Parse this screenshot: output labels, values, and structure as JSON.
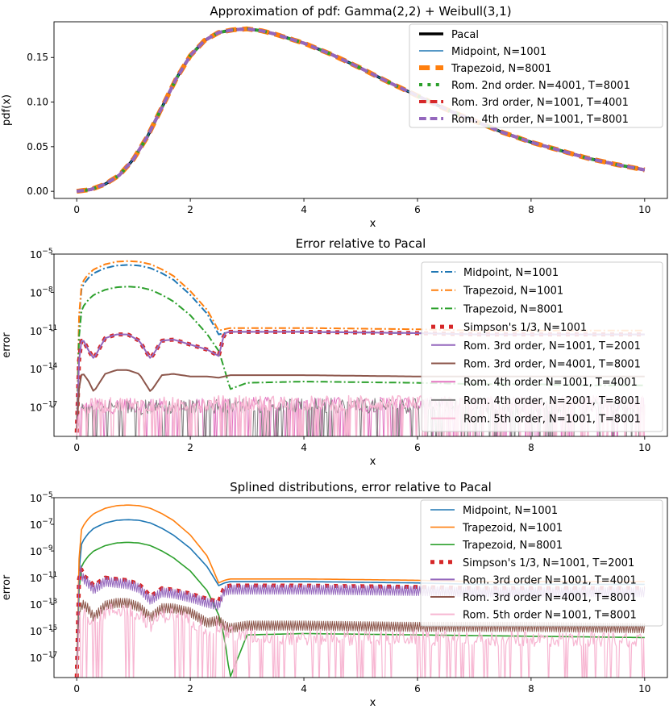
{
  "chart_data": [
    {
      "type": "line",
      "title": "Approximation of pdf: Gamma(2,2) + Weibull(3,1)",
      "xlabel": "x",
      "ylabel": "pdf(x)",
      "xlim": [
        -0.4,
        10.4
      ],
      "ylim": [
        -0.008,
        0.19
      ],
      "yscale": "linear",
      "xticks": [
        0,
        2,
        4,
        6,
        8,
        10
      ],
      "xtick_labels": [
        "0",
        "2",
        "4",
        "6",
        "8",
        "10"
      ],
      "yticks": [
        0.0,
        0.05,
        0.1,
        0.15
      ],
      "ytick_labels": [
        "0.00",
        "0.05",
        "0.10",
        "0.15"
      ],
      "legend_position": "upper-right",
      "x": [
        0,
        0.25,
        0.5,
        0.75,
        1.0,
        1.25,
        1.5,
        1.75,
        2.0,
        2.25,
        2.5,
        2.75,
        3.0,
        3.25,
        3.5,
        4.0,
        4.5,
        5.0,
        5.5,
        6.0,
        6.5,
        7.0,
        7.5,
        8.0,
        8.5,
        9.0,
        9.5,
        10.0
      ],
      "series": [
        {
          "name": "Pacal",
          "color": "#000000",
          "style": "solid",
          "width": 3.5,
          "y": [
            0,
            0.002,
            0.008,
            0.018,
            0.036,
            0.062,
            0.094,
            0.126,
            0.152,
            0.169,
            0.178,
            0.181,
            0.182,
            0.18,
            0.176,
            0.166,
            0.153,
            0.138,
            0.122,
            0.107,
            0.092,
            0.079,
            0.066,
            0.055,
            0.046,
            0.037,
            0.03,
            0.024
          ]
        },
        {
          "name": "Midpoint, N=1001",
          "color": "#1f77b4",
          "style": "solid",
          "width": 1.6,
          "y": [
            0,
            0.002,
            0.008,
            0.018,
            0.036,
            0.062,
            0.094,
            0.126,
            0.152,
            0.169,
            0.178,
            0.181,
            0.182,
            0.18,
            0.176,
            0.166,
            0.153,
            0.138,
            0.122,
            0.107,
            0.092,
            0.079,
            0.066,
            0.055,
            0.046,
            0.037,
            0.03,
            0.024
          ]
        },
        {
          "name": "Trapezoid, N=8001",
          "color": "#ff7f0e",
          "style": "dashed",
          "width": 6,
          "y": [
            0,
            0.002,
            0.008,
            0.018,
            0.036,
            0.062,
            0.094,
            0.126,
            0.152,
            0.169,
            0.178,
            0.181,
            0.182,
            0.18,
            0.176,
            0.166,
            0.153,
            0.138,
            0.122,
            0.107,
            0.092,
            0.079,
            0.066,
            0.055,
            0.046,
            0.037,
            0.03,
            0.024
          ]
        },
        {
          "name": "Rom. 2nd order. N=4001, T=8001",
          "color": "#2ca02c",
          "style": "dotted",
          "width": 4,
          "y": [
            0,
            0.002,
            0.008,
            0.018,
            0.036,
            0.062,
            0.094,
            0.126,
            0.152,
            0.169,
            0.178,
            0.181,
            0.182,
            0.18,
            0.176,
            0.166,
            0.153,
            0.138,
            0.122,
            0.107,
            0.092,
            0.079,
            0.066,
            0.055,
            0.046,
            0.037,
            0.03,
            0.024
          ]
        },
        {
          "name": "Rom. 3rd order, N=1001, T=4001",
          "color": "#d62728",
          "style": "dashed",
          "width": 4,
          "y": [
            0,
            0.002,
            0.008,
            0.018,
            0.036,
            0.062,
            0.094,
            0.126,
            0.152,
            0.169,
            0.178,
            0.181,
            0.182,
            0.18,
            0.176,
            0.166,
            0.153,
            0.138,
            0.122,
            0.107,
            0.092,
            0.079,
            0.066,
            0.055,
            0.046,
            0.037,
            0.03,
            0.024
          ]
        },
        {
          "name": "Rom. 4th order, N=1001, T=8001",
          "color": "#9467bd",
          "style": "dashed",
          "width": 4,
          "y": [
            0,
            0.002,
            0.008,
            0.018,
            0.036,
            0.062,
            0.094,
            0.126,
            0.152,
            0.169,
            0.178,
            0.181,
            0.182,
            0.18,
            0.176,
            0.166,
            0.153,
            0.138,
            0.122,
            0.107,
            0.092,
            0.079,
            0.066,
            0.055,
            0.046,
            0.037,
            0.03,
            0.024
          ]
        }
      ]
    },
    {
      "type": "line",
      "title": "Error relative to Pacal",
      "xlabel": "x",
      "ylabel": "error",
      "xlim": [
        -0.4,
        10.4
      ],
      "ylim": [
        -19.3,
        -5
      ],
      "yscale": "log10",
      "xticks": [
        0,
        2,
        4,
        6,
        8,
        10
      ],
      "xtick_labels": [
        "0",
        "2",
        "4",
        "6",
        "8",
        "10"
      ],
      "yticks": [
        -17,
        -14,
        -11,
        -8,
        -5
      ],
      "ytick_exponents": [
        "−17",
        "−14",
        "−11",
        "−8",
        "−5"
      ],
      "ytick_base": "10",
      "legend_position": "upper-right",
      "x": [
        0,
        0.05,
        0.1,
        0.2,
        0.3,
        0.5,
        0.7,
        0.9,
        1.1,
        1.3,
        1.5,
        1.7,
        2.0,
        2.3,
        2.5,
        2.6,
        2.7,
        3.0,
        4.0,
        5.0,
        6.0,
        7.0,
        8.0,
        9.0,
        10.0
      ],
      "series": [
        {
          "name": "Midpoint, N=1001",
          "color": "#1f77b4",
          "style": "dashdot",
          "width": 2,
          "y": [
            -19,
            -8.3,
            -7.5,
            -6.9,
            -6.5,
            -6.1,
            -5.9,
            -5.85,
            -5.9,
            -6.1,
            -6.5,
            -7.0,
            -8.2,
            -9.7,
            -11.3,
            -11.2,
            -11.1,
            -11.1,
            -11.1,
            -11.15,
            -11.2,
            -11.3,
            -11.3,
            -11.3,
            -11.3
          ]
        },
        {
          "name": "Trapezoid, N=1001",
          "color": "#ff7f0e",
          "style": "dashdot",
          "width": 2,
          "y": [
            -19,
            -8.0,
            -7.2,
            -6.6,
            -6.2,
            -5.8,
            -5.6,
            -5.55,
            -5.6,
            -5.8,
            -6.2,
            -6.7,
            -7.9,
            -9.4,
            -11.0,
            -10.9,
            -10.8,
            -10.8,
            -10.8,
            -10.85,
            -10.9,
            -11.0,
            -11.0,
            -11.0,
            -11.0
          ]
        },
        {
          "name": "Trapezoid, N=8001",
          "color": "#2ca02c",
          "style": "dashdot",
          "width": 2,
          "y": [
            -19,
            -10.0,
            -9.2,
            -8.6,
            -8.2,
            -7.8,
            -7.6,
            -7.55,
            -7.6,
            -7.8,
            -8.2,
            -8.7,
            -9.8,
            -11.3,
            -12.6,
            -14.0,
            -15.6,
            -15.1,
            -15.0,
            -15.05,
            -15.1,
            -15.2,
            -15.2,
            -15.3,
            -15.3
          ]
        },
        {
          "name": "Simpson's 1/3, N=1001",
          "color": "#d62728",
          "style": "squares",
          "width": 5,
          "y": [
            -19,
            -12.2,
            -11.6,
            -12.5,
            -13.2,
            -11.6,
            -11.3,
            -11.3,
            -11.8,
            -13.2,
            -11.8,
            -11.7,
            -12.1,
            -12.5,
            -13.0,
            -11.2,
            -11.1,
            -11.1,
            -11.1,
            -11.15,
            -11.2,
            -11.3,
            -11.3,
            -11.3,
            -11.3
          ]
        },
        {
          "name": "Rom. 3rd order, N=1001, T=2001",
          "color": "#9467bd",
          "style": "solid",
          "width": 2,
          "y": [
            -19,
            -12.2,
            -11.6,
            -12.5,
            -13.2,
            -11.6,
            -11.3,
            -11.3,
            -11.8,
            -13.2,
            -11.8,
            -11.7,
            -12.1,
            -12.5,
            -13.0,
            -11.2,
            -11.1,
            -11.1,
            -11.1,
            -11.15,
            -11.2,
            -11.3,
            -11.3,
            -11.3,
            -11.3
          ]
        },
        {
          "name": "Rom. 3rd order, N=4001, T=8001",
          "color": "#8c564b",
          "style": "solid",
          "width": 2,
          "y": [
            -19,
            -14.8,
            -14.3,
            -14.9,
            -15.8,
            -14.4,
            -14.1,
            -14.1,
            -14.4,
            -15.8,
            -14.5,
            -14.4,
            -14.6,
            -14.6,
            -14.7,
            -14.6,
            -14.5,
            -14.5,
            -14.5,
            -14.55,
            -14.6,
            -14.6,
            -14.6,
            -14.6,
            -14.6
          ]
        },
        {
          "name": "Rom. 4th order N=1001, T=4001",
          "color": "#e377c2",
          "style": "noise",
          "width": 1,
          "y": [
            -19,
            -17.4,
            -17.2,
            -17.1,
            -17.0,
            -17.0,
            -16.9,
            -16.9,
            -16.9,
            -16.9,
            -16.9,
            -16.9,
            -16.9,
            -16.9,
            -16.8,
            -16.8,
            -16.8,
            -16.8,
            -16.8,
            -16.8,
            -16.8,
            -16.8,
            -16.8,
            -16.8,
            -16.8
          ]
        },
        {
          "name": "Rom. 4th order, N=2001, T=8001",
          "color": "#7f7f7f",
          "style": "noise",
          "width": 1,
          "y": [
            -19,
            -17.5,
            -17.3,
            -17.2,
            -17.1,
            -17.1,
            -17.0,
            -17.0,
            -17.0,
            -17.0,
            -17.0,
            -17.0,
            -17.0,
            -17.0,
            -16.9,
            -16.9,
            -16.9,
            -16.9,
            -16.9,
            -16.9,
            -16.9,
            -16.9,
            -16.9,
            -16.9,
            -16.9
          ]
        },
        {
          "name": "Rom. 5th order, N=1001, T=8001",
          "color": "#f7b6d2",
          "style": "noise",
          "width": 1.5,
          "y": [
            -19,
            -17.3,
            -17.1,
            -17.0,
            -16.9,
            -16.9,
            -16.8,
            -16.8,
            -16.8,
            -16.8,
            -16.8,
            -16.8,
            -16.8,
            -16.8,
            -16.7,
            -16.7,
            -16.7,
            -16.7,
            -16.7,
            -16.7,
            -16.7,
            -16.7,
            -16.7,
            -16.7,
            -16.7
          ]
        }
      ]
    },
    {
      "type": "line",
      "title": "Splined distributions, error relative to Pacal",
      "xlabel": "x",
      "ylabel": "error",
      "xlim": [
        -0.4,
        10.4
      ],
      "ylim": [
        -18.5,
        -5
      ],
      "yscale": "log10",
      "xticks": [
        0,
        2,
        4,
        6,
        8,
        10
      ],
      "xtick_labels": [
        "0",
        "2",
        "4",
        "6",
        "8",
        "10"
      ],
      "yticks": [
        -17,
        -15,
        -13,
        -11,
        -9,
        -7,
        -5
      ],
      "ytick_exponents": [
        "−17",
        "−15",
        "−13",
        "−11",
        "−9",
        "−7",
        "−5"
      ],
      "ytick_base": "10",
      "legend_position": "upper-right",
      "x": [
        0,
        0.05,
        0.1,
        0.2,
        0.3,
        0.5,
        0.7,
        0.9,
        1.1,
        1.3,
        1.5,
        1.7,
        2.0,
        2.3,
        2.5,
        2.6,
        2.7,
        3.0,
        4.0,
        5.0,
        6.0,
        7.0,
        8.0,
        9.0,
        10.0
      ],
      "series": [
        {
          "name": "Midpoint, N=1001",
          "color": "#1f77b4",
          "style": "solid",
          "width": 1.6,
          "y": [
            -18.5,
            -8.9,
            -8.3,
            -7.7,
            -7.3,
            -6.9,
            -6.7,
            -6.65,
            -6.7,
            -6.9,
            -7.3,
            -7.8,
            -8.8,
            -10.2,
            -11.6,
            -11.4,
            -11.3,
            -11.3,
            -11.3,
            -11.35,
            -11.4,
            -11.5,
            -11.5,
            -11.5,
            -11.5
          ]
        },
        {
          "name": "Trapezoid, N=1001",
          "color": "#ff7f0e",
          "style": "solid",
          "width": 1.6,
          "y": [
            -18.5,
            -7.8,
            -7.2,
            -6.6,
            -6.2,
            -5.8,
            -5.6,
            -5.55,
            -5.6,
            -5.8,
            -6.2,
            -6.7,
            -7.8,
            -9.4,
            -11.4,
            -11.2,
            -11.1,
            -11.1,
            -11.1,
            -11.15,
            -11.2,
            -11.3,
            -11.3,
            -11.3,
            -11.3
          ]
        },
        {
          "name": "Trapezoid, N=8001",
          "color": "#2ca02c",
          "style": "solid",
          "width": 1.6,
          "y": [
            -18.5,
            -10.6,
            -10.0,
            -9.4,
            -9.0,
            -8.6,
            -8.4,
            -8.35,
            -8.4,
            -8.6,
            -9.0,
            -9.5,
            -10.5,
            -12.0,
            -13.8,
            -15.5,
            -18.5,
            -15.3,
            -15.2,
            -15.25,
            -15.3,
            -15.35,
            -15.4,
            -15.45,
            -15.5
          ]
        },
        {
          "name": "Simpson's 1/3, N=1001, T=2001",
          "color": "#d62728",
          "style": "squares",
          "width": 5,
          "y": [
            -18.5,
            -9.6,
            -10.8,
            -11.1,
            -11.6,
            -11.0,
            -11.1,
            -11.2,
            -11.5,
            -12.4,
            -11.8,
            -11.9,
            -12.2,
            -12.6,
            -12.8,
            -11.7,
            -11.6,
            -11.6,
            -11.6,
            -11.65,
            -11.7,
            -11.8,
            -11.8,
            -11.8,
            -11.8
          ]
        },
        {
          "name": "Rom. 3rd order N=1001, T=4001",
          "color": "#9467bd",
          "style": "band",
          "width": 1,
          "y": [
            -18.5,
            -9.8,
            -11.0,
            -11.4,
            -11.9,
            -11.3,
            -11.4,
            -11.5,
            -11.8,
            -12.7,
            -12.1,
            -12.2,
            -12.5,
            -12.9,
            -13.1,
            -12.0,
            -11.9,
            -11.9,
            -11.9,
            -11.95,
            -12.0,
            -12.1,
            -12.1,
            -12.1,
            -12.1
          ]
        },
        {
          "name": "Rom. 3rd order N=4001, T=8001",
          "color": "#8c564b",
          "style": "band",
          "width": 1,
          "y": [
            -18.5,
            -13.5,
            -13.0,
            -13.3,
            -14.0,
            -13.1,
            -12.9,
            -12.9,
            -13.2,
            -14.0,
            -13.3,
            -13.3,
            -13.6,
            -14.4,
            -14.2,
            -14.6,
            -14.8,
            -14.6,
            -14.6,
            -14.65,
            -14.7,
            -14.7,
            -14.7,
            -14.75,
            -14.8
          ]
        },
        {
          "name": "Rom. 5th order N=1001, T=8001",
          "color": "#f7b6d2",
          "style": "noise",
          "width": 1.2,
          "y": [
            -18.5,
            -13.8,
            -13.5,
            -13.8,
            -14.5,
            -13.6,
            -13.4,
            -13.4,
            -13.7,
            -14.5,
            -13.8,
            -13.8,
            -14.1,
            -14.9,
            -14.7,
            -15.0,
            -15.2,
            -15.4,
            -15.5,
            -15.5,
            -15.5,
            -15.6,
            -15.6,
            -15.6,
            -15.6
          ]
        }
      ]
    }
  ]
}
